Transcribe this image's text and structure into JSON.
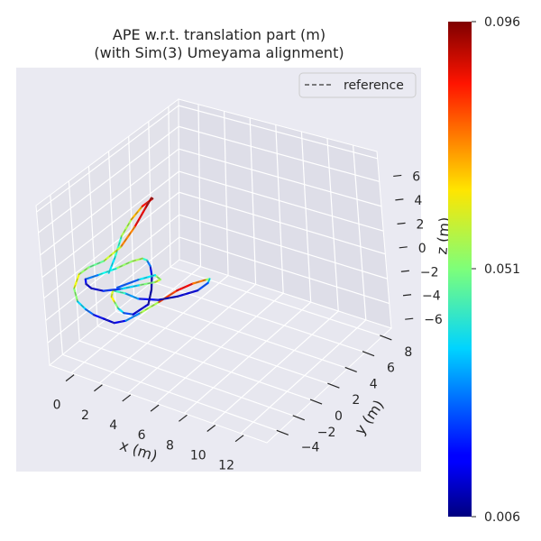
{
  "chart_data": {
    "type": "line",
    "title": "APE w.r.t. translation part (m)",
    "subtitle": "(with Sim(3) Umeyama alignment)",
    "xlabel": "x (m)",
    "ylabel": "y (m)",
    "zlabel": "z (m)",
    "x_ticks": [
      "0",
      "2",
      "4",
      "6",
      "8",
      "10",
      "12"
    ],
    "y_ticks": [
      "−4",
      "−2",
      "0",
      "2",
      "4",
      "6",
      "8"
    ],
    "z_ticks": [
      "6",
      "4",
      "2",
      "0",
      "−2",
      "−4",
      "−6"
    ],
    "legend": {
      "entries": [
        "reference"
      ],
      "position": "top-right"
    },
    "colorbar": {
      "max_label": "0.096",
      "mid_label": "0.051",
      "min_label": "0.006",
      "min": 0.006,
      "max": 0.096,
      "colormap": "jet"
    },
    "trajectory": {
      "x": [
        1.2,
        1.1,
        1.0,
        1.3,
        1.8,
        2.6,
        3.0,
        3.4,
        3.6,
        3.3,
        2.5,
        1.6,
        1.0,
        1.2,
        2.0,
        3.0,
        4.0,
        5.0,
        6.0,
        6.7,
        7.2,
        7.7,
        8.0,
        8.2,
        8.3,
        8.0,
        7.6,
        7.0,
        6.0,
        5.0,
        4.0,
        3.3,
        3.0,
        3.6,
        4.4,
        5.2,
        6.0,
        6.8,
        7.2,
        6.6,
        5.8,
        5.0,
        4.2,
        3.6,
        3.0,
        2.4,
        1.8,
        1.6,
        2.2,
        3.0,
        4.0,
        5.0,
        5.8,
        6.2,
        6.0,
        5.2,
        4.4,
        3.6
      ],
      "y": [
        3.0,
        3.8,
        4.6,
        5.2,
        5.6,
        5.5,
        4.8,
        3.6,
        2.2,
        1.2,
        0.6,
        0.3,
        0.2,
        -0.6,
        -1.4,
        -2.0,
        -2.6,
        -3.0,
        -3.4,
        -3.2,
        -2.4,
        -1.2,
        0.2,
        1.6,
        2.8,
        3.6,
        4.0,
        3.8,
        3.2,
        2.6,
        2.0,
        1.6,
        0.8,
        -0.2,
        -1.0,
        -1.8,
        -2.4,
        -2.6,
        -1.6,
        -0.4,
        0.8,
        1.8,
        2.6,
        3.0,
        2.8,
        2.0,
        1.0,
        0.0,
        -0.8,
        -1.4,
        -1.6,
        -1.2,
        -0.4,
        0.6,
        1.4,
        2.0,
        1.4,
        0.4
      ],
      "z": [
        -2.8,
        -2.0,
        -0.8,
        0.4,
        1.5,
        2.6,
        3.3,
        3.4,
        2.8,
        1.6,
        0.4,
        -0.4,
        -1.2,
        -1.8,
        -2.0,
        -1.8,
        -1.4,
        -1.0,
        -0.6,
        -0.2,
        0.2,
        0.6,
        0.8,
        0.6,
        0.2,
        -0.4,
        -1.2,
        -2.0,
        -2.6,
        -3.0,
        -3.0,
        -2.6,
        -2.0,
        -1.6,
        -1.2,
        -0.8,
        -0.4,
        0.0,
        0.4,
        0.6,
        0.6,
        0.4,
        0.0,
        -0.4,
        -0.8,
        -1.2,
        -1.4,
        -1.2,
        -0.8,
        -0.4,
        0.0,
        0.4,
        0.6,
        0.4,
        0.0,
        -0.4,
        -0.8,
        -1.2
      ],
      "error": [
        0.035,
        0.04,
        0.048,
        0.062,
        0.075,
        0.092,
        0.094,
        0.09,
        0.082,
        0.064,
        0.052,
        0.046,
        0.06,
        0.062,
        0.042,
        0.031,
        0.022,
        0.014,
        0.012,
        0.02,
        0.038,
        0.072,
        0.086,
        0.084,
        0.064,
        0.046,
        0.03,
        0.018,
        0.01,
        0.012,
        0.024,
        0.038,
        0.052,
        0.066,
        0.058,
        0.044,
        0.03,
        0.018,
        0.01,
        0.008,
        0.012,
        0.02,
        0.036,
        0.052,
        0.058,
        0.048,
        0.034,
        0.022,
        0.014,
        0.01,
        0.016,
        0.028,
        0.044,
        0.058,
        0.06,
        0.046,
        0.03,
        0.02
      ]
    }
  }
}
